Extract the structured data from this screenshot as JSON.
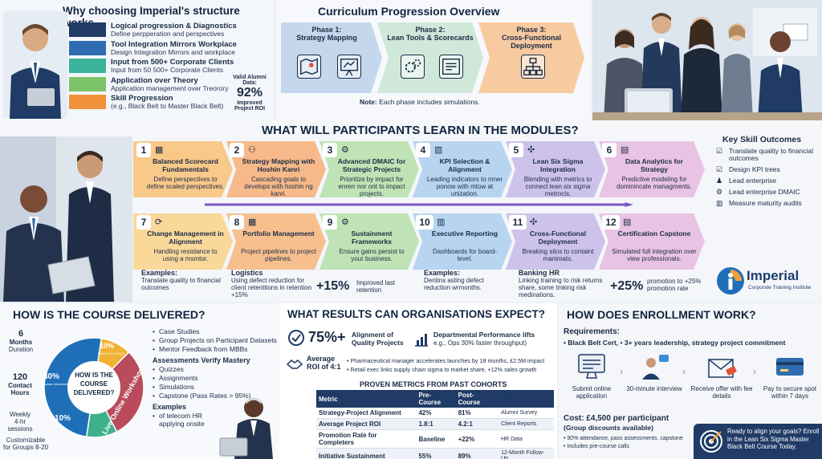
{
  "why": {
    "title": "Why choosing Imperial's structure works",
    "items": [
      {
        "title": "Logical progression & Diagnostics",
        "desc": "Define perpperation and perspectives",
        "color": "#1f3b66"
      },
      {
        "title": "Tool Integration Mirrors Workplace",
        "desc": "Design Integration Mirrors and workplace",
        "color": "#2f6db0"
      },
      {
        "title": "Input from 500+ Corporate Clients",
        "desc": "Input from 50 500+ Corporate Clients",
        "color": "#3bb39a"
      },
      {
        "title": "Application over Theory",
        "desc": "Application management over Treorory",
        "color": "#7cc36a"
      },
      {
        "title": "Skill Progression",
        "desc": "(e.g., Black Belt to Master Black Belt)",
        "color": "#f0923a"
      }
    ],
    "alumni_label": "Valid Alumni Data:",
    "alumni_value": "92%",
    "alumni_caption": "Improved Project ROI"
  },
  "curriculum": {
    "title": "Curriculum Progression Overview",
    "phases": [
      {
        "label": "Phase 1:",
        "name": "Strategy Mapping",
        "color": "#c5d7ec",
        "icons": [
          "map-icon",
          "chalkboard-icon"
        ]
      },
      {
        "label": "Phase 2:",
        "name": "Lean Tools & Scorecards",
        "color": "#cfe8d9",
        "icons": [
          "gears-icon",
          "scorecard-icon"
        ]
      },
      {
        "label": "Phase 3:",
        "name": "Cross-Functional Deployment",
        "color": "#f8caa0",
        "icons": [
          "org-chart-icon"
        ]
      }
    ],
    "note_label": "Note:",
    "note_text": "Each phase includes simulations."
  },
  "modules": {
    "title": "WHAT WILL PARTICIPANTS LEARN IN THE MODULES?",
    "items": [
      {
        "num": "1",
        "title": "Balanced Scorecard Fundamentals",
        "desc": "Define perspectives to define scaled perspectives.",
        "color": "#f9c98a"
      },
      {
        "num": "2",
        "title": "Strategy Mapping with Hoshin Kanri",
        "desc": "Cascading goals to develops with hoshin ng kanri.",
        "color": "#f7b98a"
      },
      {
        "num": "3",
        "title": "Advanced DMAIC for Strategic Projects",
        "desc": "Prioritize by impact for enrerr nor ont to impact projects.",
        "color": "#bfe3b4"
      },
      {
        "num": "4",
        "title": "KPI Selection & Alignment",
        "desc": "Leading indicators to mner ponow with mtow at unization.",
        "color": "#b7d4f0"
      },
      {
        "num": "5",
        "title": "Lean Six Sigma Integration",
        "desc": "Blending with metrics to connect lean six sigma metrocis.",
        "color": "#cdc3ea"
      },
      {
        "num": "6",
        "title": "Data Analytics for Strategy",
        "desc": "Predictive modeling for dominincate managments.",
        "color": "#e9c3e3"
      },
      {
        "num": "7",
        "title": "Change Management in Alignment",
        "desc": "Handling resistance to using a msmtor.",
        "color": "#f9d89a"
      },
      {
        "num": "8",
        "title": "Portfolio Management",
        "desc": "Project pipelines to project pipelines.",
        "color": "#f7bf8e"
      },
      {
        "num": "9",
        "title": "Sustainment Frameworks",
        "desc": "Ensure gains persist to your business.",
        "color": "#bfe3b4"
      },
      {
        "num": "10",
        "title": "Executive Reporting",
        "desc": "Dashboards for board-level.",
        "color": "#b7d4f0"
      },
      {
        "num": "11",
        "title": "Cross-Functional Deployment",
        "desc": "Breaking silos to containt manimats.",
        "color": "#cdc3ea"
      },
      {
        "num": "12",
        "title": "Certification Capstone",
        "desc": "Simulated full integration over view professionals.",
        "color": "#e9c3e3"
      }
    ],
    "examples": [
      {
        "head": "Examples:",
        "text": "Translate quality to financial outcomes"
      },
      {
        "head": "Logistics",
        "text": "Using defect reduction for client retenttions in retention +15%"
      },
      {
        "head": "Examples:",
        "text": "Dentins asting defect reduction wrmonths."
      },
      {
        "head": "Banking HR",
        "text": "Linking training to risk returns share, some tmking risk medinations."
      }
    ],
    "stat1_value": "+15%",
    "stat1_text": "Improved last retention",
    "stat2_value": "+25%",
    "stat2_text": "promotion to +25% promotion rate",
    "skills_title": "Key Skill Outcomes",
    "skills": [
      "Translate quality to financial outcomes",
      "Design KPI trees",
      "Lead enterprise",
      "Lead enterprise DMAIC",
      "Measure maturity audits"
    ],
    "brand_name": "Imperial",
    "brand_sub": "Corporate Training Institute"
  },
  "delivery": {
    "title": "HOW IS THE COURSE DELIVERED?",
    "donut_center": "HOW IS THE COURSE DELIVERED?",
    "donut_segments": [
      {
        "label": "10%",
        "value": 10,
        "color": "#f2b233"
      },
      {
        "label": "30%",
        "value": 30,
        "color": "#b94b5d"
      },
      {
        "label": "10%",
        "value": 10,
        "color": "#3fb08c"
      },
      {
        "label": "Live Online Workshops",
        "value": 50,
        "color": "#1f6fb8"
      }
    ],
    "seg1_caption": "Bistrict Pr of CSIG",
    "seg2_caption": "Ussista Unseduntes",
    "stats": [
      {
        "n": "6",
        "t1": "Months",
        "t2": "Duration"
      },
      {
        "n": "120",
        "t1": "Contact",
        "t2": "Hours"
      },
      {
        "n": "",
        "t1": "Weekly",
        "t2": "4-hr sessions"
      },
      {
        "n": "",
        "t1": "Customizable",
        "t2": "for Groups 8-20"
      }
    ],
    "list1": [
      "Case Studies",
      "Group Projects on Participant Datasets",
      "Mentor Feedback from MBBs"
    ],
    "assess_title": "Assessments Verify Mastery",
    "list2": [
      "Quizzes",
      "Assignments",
      "Simulations",
      "Capstone (Pass Rates > 95%)"
    ],
    "examples_title": "Examples",
    "list3": [
      "of telecom HR applying onsite"
    ]
  },
  "results": {
    "title": "WHAT RESULTS CAN ORGANISATIONS EXPECT?",
    "k1_value": "75%+",
    "k1_text": "Alignment of Quality Projects",
    "k2_title": "Departmental Performance lifts",
    "k2_text": "e.g., Ops 30% faster throughput)",
    "k3_label": "Average ROI of 4:1",
    "bullets": [
      "Pharmaceutical manager accelerates launches by 18 months, £2.5M impact",
      "Retail exec links supply chain sigma to market share, +12% sales growth"
    ],
    "table_title": "PROVEN METRICS FROM PAST COHORTS",
    "headers": [
      "Metric",
      "Pre-Course",
      "Post-Course",
      "Way"
    ],
    "rows": [
      [
        "Strategy-Project Alignment",
        "42%",
        "81%",
        "Alumni Survey"
      ],
      [
        "Average Project ROI",
        "1.8:1",
        "4.2:1",
        "Client Reports"
      ],
      [
        "Promotion Rate for Completers",
        "Baseline",
        "+22%",
        "HR Data"
      ],
      [
        "Initiative Sustainment",
        "55%",
        "89%",
        "12-Month Follow-Up"
      ]
    ]
  },
  "enrollment": {
    "title": "HOW DOES ENROLLMENT WORK?",
    "req_title": "Requirements:",
    "req_text": "• Black Belt Cert, • 3+ years leadership, strategy project commitment",
    "steps": [
      "Submit online application",
      "30-minute interview",
      "Receive offer with fee details",
      "Pay to secure spot within 7 days"
    ],
    "cost": "Cost: £4,500 per participant",
    "cost_note": "(Group discounts available)",
    "notes": [
      "90% attendance, pass assessments, capstone",
      "Includes pre-course calls"
    ],
    "cta": "Ready to align your goals? Enroll in the Lean Six Sigma Master Black Belt Course Today."
  }
}
